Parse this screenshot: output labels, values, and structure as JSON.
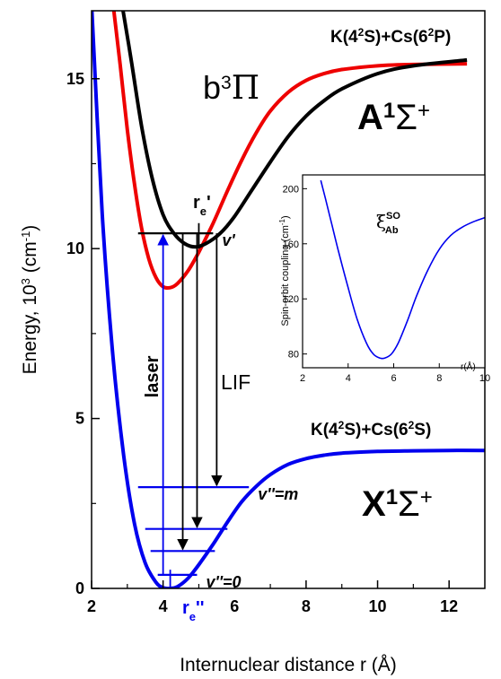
{
  "chart_data": [
    {
      "type": "line",
      "xlabel": "Internuclear distance r (Å)",
      "ylabel_main": "Energy, 10",
      "ylabel_sup": "3",
      "ylabel_tail": " (cm",
      "ylabel_sup2": "-1",
      "ylabel_end": ")",
      "xlim": [
        2,
        13
      ],
      "ylim": [
        0,
        17
      ],
      "xticks": [
        2,
        4,
        6,
        8,
        10,
        12
      ],
      "yticks": [
        0,
        5,
        10,
        15
      ],
      "colors": {
        "X1Sigma": "#0000ee",
        "A1Sigma": "#ee0000",
        "b3Pi": "#000000",
        "laser": "#0000ee",
        "lif": "#000000"
      },
      "series": [
        {
          "key": "X1Sigma",
          "color": "#0000ee",
          "x": [
            2.0,
            2.3,
            2.6,
            2.9,
            3.2,
            3.5,
            3.8,
            4.0,
            4.2,
            4.4,
            4.7,
            5.0,
            5.4,
            5.8,
            6.2,
            6.6,
            7.0,
            7.5,
            8.0,
            8.5,
            9.0,
            10.0,
            11.0,
            12.0,
            13.0
          ],
          "y": [
            17.2,
            11.0,
            6.8,
            3.9,
            1.9,
            0.75,
            0.18,
            0.02,
            0.0,
            0.05,
            0.3,
            0.7,
            1.3,
            1.95,
            2.55,
            3.0,
            3.35,
            3.65,
            3.82,
            3.92,
            3.98,
            4.03,
            4.05,
            4.06,
            4.06
          ]
        },
        {
          "key": "A1Sigma",
          "color": "#ee0000",
          "x": [
            2.6,
            2.8,
            3.0,
            3.2,
            3.4,
            3.6,
            3.8,
            4.0,
            4.2,
            4.4,
            4.7,
            5.0,
            5.4,
            5.8,
            6.2,
            6.6,
            7.0,
            7.5,
            8.0,
            8.5,
            9.0,
            10.0,
            11.0,
            12.5
          ],
          "y": [
            17.2,
            15.4,
            13.5,
            11.9,
            10.6,
            9.7,
            9.15,
            8.88,
            8.85,
            8.97,
            9.35,
            9.9,
            10.75,
            11.7,
            12.6,
            13.4,
            14.05,
            14.6,
            14.95,
            15.15,
            15.27,
            15.38,
            15.42,
            15.44
          ]
        },
        {
          "key": "b3Pi",
          "color": "#000000",
          "x": [
            2.85,
            3.1,
            3.4,
            3.7,
            4.0,
            4.3,
            4.6,
            4.9,
            5.2,
            5.6,
            6.0,
            6.5,
            7.0,
            7.5,
            8.0,
            8.5,
            9.0,
            10.0,
            11.0,
            12.5
          ],
          "y": [
            17.2,
            15.6,
            13.6,
            12.05,
            11.0,
            10.45,
            10.15,
            10.05,
            10.15,
            10.45,
            10.95,
            11.75,
            12.55,
            13.3,
            13.9,
            14.35,
            14.7,
            15.15,
            15.38,
            15.55
          ]
        }
      ],
      "levels": [
        {
          "label": "v'",
          "y": 10.45,
          "x1": 3.3,
          "x2": 5.4,
          "color": "#000000"
        },
        {
          "label": "v''=m",
          "y": 2.98,
          "x1": 3.3,
          "x2": 6.4,
          "color": "#0000ee"
        },
        {
          "label": "",
          "y": 1.75,
          "x1": 3.5,
          "x2": 5.8,
          "color": "#0000ee"
        },
        {
          "label": "",
          "y": 1.1,
          "x1": 3.65,
          "x2": 5.45,
          "color": "#0000ee"
        },
        {
          "label": "v''=0",
          "y": 0.4,
          "x1": 3.85,
          "x2": 4.95,
          "color": "#0000ee"
        }
      ],
      "laser_arrow": {
        "x": 4.0,
        "y_from": 0.4,
        "y_to": 10.45,
        "label": "laser"
      },
      "lif_arrows": [
        {
          "x": 4.55,
          "y_from": 10.45,
          "y_to": 1.1
        },
        {
          "x": 4.95,
          "y_from": 10.45,
          "y_to": 1.75
        },
        {
          "x": 5.5,
          "y_from": 10.45,
          "y_to": 2.98
        }
      ],
      "lif_label": "LIF",
      "re_prime": {
        "x": 5.0,
        "y_top": 10.75,
        "y_bot": 10.0,
        "base": "r",
        "sub": "e",
        "tail": "'"
      },
      "re_dprime": {
        "x": 4.2,
        "y_top": 0.55,
        "y_bot": 0.0,
        "base": "r",
        "sub": "e",
        "tail": "''"
      },
      "labels": {
        "asym_upper_base": "K(4",
        "asym_upper_s1": "2",
        "asym_upper_m1": "S)+Cs(6",
        "asym_upper_s2": "2",
        "asym_upper_end": "P)",
        "asym_lower_base": "K(4",
        "asym_lower_s1": "2",
        "asym_lower_m1": "S)+Cs(6",
        "asym_lower_s2": "2",
        "asym_lower_end": "S)",
        "b3pi_base": "b",
        "b3pi_sup": "3",
        "b3pi_end": "Π",
        "A_base": "A",
        "A_sup": "1",
        "A_sigma": "Σ",
        "A_plus": "+",
        "X_base": "X",
        "X_sup": "1",
        "X_sigma": "Σ",
        "X_plus": "+"
      }
    },
    {
      "type": "line",
      "title": "inset",
      "xlabel": "r(Å)",
      "ylabel": "Spin-orbit coupling (cm-1)",
      "ylabel_base": "Spin-orbit coupling (cm",
      "ylabel_sup": "-1",
      "ylabel_end": ")",
      "xlim": [
        2,
        10
      ],
      "ylim": [
        70,
        210
      ],
      "xticks": [
        2,
        4,
        6,
        8,
        10
      ],
      "yticks": [
        80,
        120,
        160,
        200
      ],
      "label_base": "ξ",
      "label_sup": "SO",
      "label_sub": "Ab",
      "series": [
        {
          "color": "#0000ee",
          "x": [
            2.8,
            3.0,
            3.3,
            3.6,
            4.0,
            4.4,
            4.8,
            5.1,
            5.4,
            5.6,
            5.9,
            6.2,
            6.6,
            7.0,
            7.5,
            8.0,
            8.5,
            9.0,
            9.5,
            10.0
          ],
          "y": [
            206,
            193,
            173,
            153,
            128,
            105,
            88,
            80,
            77,
            77,
            80,
            88,
            104,
            122,
            141,
            156,
            166,
            172,
            176,
            179
          ]
        }
      ]
    }
  ]
}
